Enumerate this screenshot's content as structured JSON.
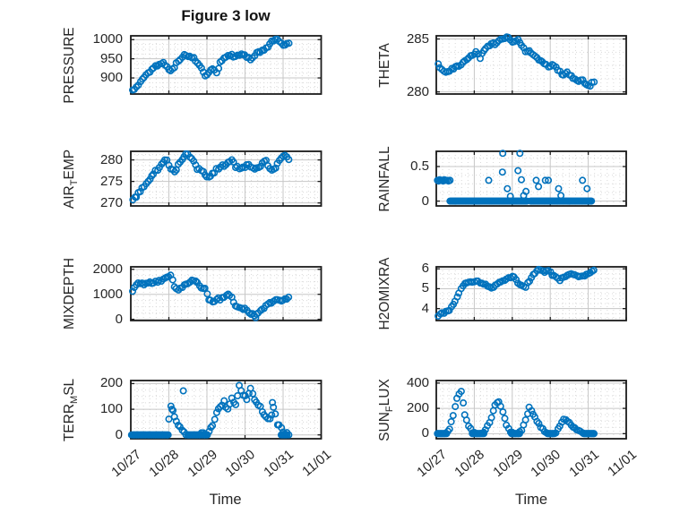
{
  "figure": {
    "title": "Figure 3 low",
    "xlabel": "Time",
    "marker": "open-circle",
    "marker_color": "#0072BD",
    "axis_color": "#1b1b1b",
    "major_grid_color": "#c7c7c7",
    "minor_grid_color": "#d9d9d9",
    "text_color": "#262626",
    "background": "#ffffff",
    "grid": true,
    "minor_grid": true,
    "legend": "none"
  },
  "x_axis": {
    "tick_labels": [
      "10/27",
      "10/28",
      "10/29",
      "10/30",
      "10/31",
      "11/01"
    ],
    "lim_days": [
      0,
      5
    ],
    "label": "Time"
  },
  "chart_data": [
    {
      "type": "scatter",
      "id": "pressure",
      "row": 0,
      "col": 0,
      "ylabel": {
        "pre": "PRESSURE",
        "sub": "",
        "post": ""
      },
      "yticks": [
        900,
        950,
        1000
      ],
      "ytick_labels": [
        "900",
        "950",
        "1000"
      ],
      "ylim": [
        858,
        1010
      ],
      "jitter": 4,
      "sampled": {
        "x0": 0.05,
        "dx": 0.1,
        "y": [
          868,
          878,
          890,
          902,
          913,
          923,
          931,
          937,
          941,
          930,
          920,
          928,
          945,
          955,
          960,
          958,
          952,
          938,
          925,
          905,
          915,
          925,
          912,
          940,
          952,
          958,
          960,
          956,
          958,
          962,
          955,
          948,
          958,
          968,
          972,
          978,
          988,
          998,
          1000,
          990,
          985,
          992
        ]
      }
    },
    {
      "type": "scatter",
      "id": "theta",
      "row": 0,
      "col": 1,
      "ylabel": {
        "pre": "THETA",
        "sub": "",
        "post": ""
      },
      "yticks": [
        280,
        285
      ],
      "ytick_labels": [
        "280",
        "285"
      ],
      "ylim": [
        279.8,
        285.3
      ],
      "jitter": 0.15,
      "sampled": {
        "x0": 0.05,
        "dx": 0.1,
        "y": [
          282.6,
          282.1,
          281.8,
          282.0,
          282.2,
          282.4,
          282.6,
          282.9,
          283.2,
          283.5,
          283.8,
          283.2,
          283.9,
          284.3,
          284.6,
          284.4,
          284.8,
          285.0,
          285.2,
          284.9,
          284.7,
          284.9,
          284.4,
          283.8,
          283.9,
          283.5,
          283.2,
          282.9,
          282.6,
          282.4,
          282.6,
          282.3,
          281.9,
          281.6,
          281.9,
          281.5,
          281.2,
          281.0,
          281.1,
          280.7,
          280.6,
          281.0
        ]
      }
    },
    {
      "type": "scatter",
      "id": "air_temp",
      "row": 1,
      "col": 0,
      "ylabel": {
        "pre": "AIR",
        "sub": "T",
        "post": "EMP"
      },
      "yticks": [
        270,
        275,
        280
      ],
      "ytick_labels": [
        "270",
        "275",
        "280"
      ],
      "ylim": [
        269.3,
        282.0
      ],
      "jitter": 0.5,
      "sampled": {
        "x0": 0.05,
        "dx": 0.1,
        "y": [
          270.6,
          271.5,
          272.6,
          273.8,
          275.0,
          276.2,
          277.4,
          278.4,
          279.3,
          280.0,
          278.0,
          277.2,
          279.0,
          280.3,
          281.2,
          280.6,
          279.6,
          277.9,
          277.5,
          276.3,
          275.9,
          277.0,
          277.8,
          278.3,
          278.6,
          279.6,
          280.0,
          278.2,
          278.0,
          278.4,
          278.9,
          278.4,
          277.9,
          278.3,
          279.5,
          280.0,
          278.1,
          277.8,
          279.3,
          280.3,
          280.9,
          280.2
        ]
      }
    },
    {
      "type": "scatter",
      "id": "rainfall",
      "row": 1,
      "col": 1,
      "ylabel": {
        "pre": "RAINFALL",
        "sub": "",
        "post": ""
      },
      "yticks": [
        0,
        0.5
      ],
      "ytick_labels": [
        "0",
        "0.5"
      ],
      "ylim": [
        -0.07,
        0.72
      ],
      "jitter": 0,
      "clamp_zero": true,
      "zero_spans": [
        [
          0.36,
          2.4
        ],
        [
          2.48,
          4.1
        ]
      ],
      "zero_step": 0.022,
      "points": [
        [
          0.03,
          0.3
        ],
        [
          0.06,
          0.29
        ],
        [
          0.09,
          0.31
        ],
        [
          0.12,
          0.3
        ],
        [
          0.15,
          0.3
        ],
        [
          0.18,
          0.29
        ],
        [
          0.21,
          0.31
        ],
        [
          0.24,
          0.3
        ],
        [
          0.28,
          0.3
        ],
        [
          0.32,
          0.29
        ],
        [
          0.36,
          0.3
        ],
        [
          1.38,
          0.3
        ],
        [
          1.74,
          0.42
        ],
        [
          1.75,
          0.69
        ],
        [
          1.87,
          0.18
        ],
        [
          1.95,
          0.07
        ],
        [
          2.15,
          0.44
        ],
        [
          2.2,
          0.69
        ],
        [
          2.24,
          0.31
        ],
        [
          2.3,
          0.08
        ],
        [
          2.36,
          0.14
        ],
        [
          2.63,
          0.3
        ],
        [
          2.69,
          0.21
        ],
        [
          2.87,
          0.3
        ],
        [
          2.95,
          0.3
        ],
        [
          3.22,
          0.18
        ],
        [
          3.28,
          0.08
        ],
        [
          3.85,
          0.3
        ],
        [
          3.97,
          0.18
        ]
      ]
    },
    {
      "type": "scatter",
      "id": "mixdepth",
      "row": 2,
      "col": 0,
      "ylabel": {
        "pre": "MIXDEPTH",
        "sub": "",
        "post": ""
      },
      "yticks": [
        0,
        1000,
        2000
      ],
      "ytick_labels": [
        "0",
        "1000",
        "2000"
      ],
      "ylim": [
        -50,
        2100
      ],
      "jitter": 70,
      "sampled": {
        "x0": 0.05,
        "dx": 0.1,
        "y": [
          1100,
          1350,
          1450,
          1400,
          1480,
          1450,
          1500,
          1550,
          1620,
          1700,
          1760,
          1300,
          1150,
          1250,
          1400,
          1500,
          1550,
          1450,
          1280,
          1220,
          760,
          700,
          820,
          780,
          870,
          980,
          900,
          560,
          480,
          420,
          350,
          220,
          150,
          260,
          420,
          560,
          650,
          720,
          780,
          760,
          850,
          880
        ]
      },
      "points": [
        [
          3.28,
          60
        ]
      ]
    },
    {
      "type": "scatter",
      "id": "h2omixra",
      "row": 2,
      "col": 1,
      "ylabel": {
        "pre": "H2OMIXRA",
        "sub": "",
        "post": ""
      },
      "yticks": [
        4,
        5,
        6
      ],
      "ytick_labels": [
        "4",
        "5",
        "6"
      ],
      "ylim": [
        3.4,
        6.1
      ],
      "jitter": 0.07,
      "sampled": {
        "x0": 0.05,
        "dx": 0.1,
        "y": [
          3.6,
          3.8,
          3.85,
          3.9,
          4.2,
          4.6,
          5.0,
          5.25,
          5.3,
          5.35,
          5.4,
          5.3,
          5.25,
          5.1,
          5.05,
          5.2,
          5.3,
          5.4,
          5.5,
          5.55,
          5.6,
          5.3,
          5.2,
          5.1,
          5.4,
          5.7,
          5.9,
          5.95,
          5.85,
          5.9,
          5.7,
          5.6,
          5.4,
          5.6,
          5.7,
          5.75,
          5.7,
          5.6,
          5.65,
          5.75,
          5.8,
          5.9
        ]
      }
    },
    {
      "type": "scatter",
      "id": "terr_msl",
      "row": 3,
      "col": 0,
      "ylabel": {
        "pre": "TERR",
        "sub": "M",
        "post": "SL"
      },
      "yticks": [
        0,
        100,
        200
      ],
      "ytick_labels": [
        "0",
        "100",
        "200"
      ],
      "ylim": [
        -15,
        212
      ],
      "jitter": 10,
      "clamp_zero": true,
      "sampled": {
        "x0": 0.05,
        "dx": 0.1,
        "y": [
          0,
          0,
          0,
          0,
          0,
          0,
          0,
          0,
          0,
          0,
          115,
          75,
          35,
          15,
          0,
          0,
          0,
          0,
          5,
          0,
          10,
          40,
          90,
          110,
          130,
          100,
          140,
          120,
          195,
          150,
          140,
          185,
          135,
          120,
          90,
          70,
          60,
          110,
          40,
          25,
          5,
          0
        ]
      },
      "points": [
        [
          1.08,
          100
        ],
        [
          1.38,
          172
        ],
        [
          3.72,
          126
        ]
      ],
      "zero_spans": [
        [
          0.02,
          1.0
        ],
        [
          1.5,
          2.02
        ],
        [
          3.95,
          4.12
        ]
      ],
      "zero_step": 0.03
    },
    {
      "type": "scatter",
      "id": "sun_flux",
      "row": 3,
      "col": 1,
      "ylabel": {
        "pre": "SUN",
        "sub": "F",
        "post": "LUX"
      },
      "yticks": [
        0,
        200,
        400
      ],
      "ytick_labels": [
        "0",
        "200",
        "400"
      ],
      "ylim": [
        -40,
        420
      ],
      "jitter": 10,
      "clamp_zero": true,
      "sampled": {
        "x0": 0.05,
        "dx": 0.1,
        "y": [
          0,
          0,
          5,
          40,
          140,
          280,
          330,
          150,
          60,
          10,
          0,
          0,
          10,
          60,
          130,
          230,
          255,
          170,
          70,
          15,
          0,
          0,
          30,
          110,
          210,
          150,
          100,
          50,
          15,
          0,
          0,
          5,
          60,
          115,
          100,
          70,
          45,
          25,
          10,
          0,
          0,
          0
        ]
      },
      "zero_spans": [
        [
          0.03,
          0.27
        ],
        [
          0.95,
          1.25
        ],
        [
          1.98,
          2.2
        ],
        [
          2.93,
          3.1
        ],
        [
          3.88,
          4.15
        ]
      ],
      "zero_step": 0.03
    }
  ]
}
